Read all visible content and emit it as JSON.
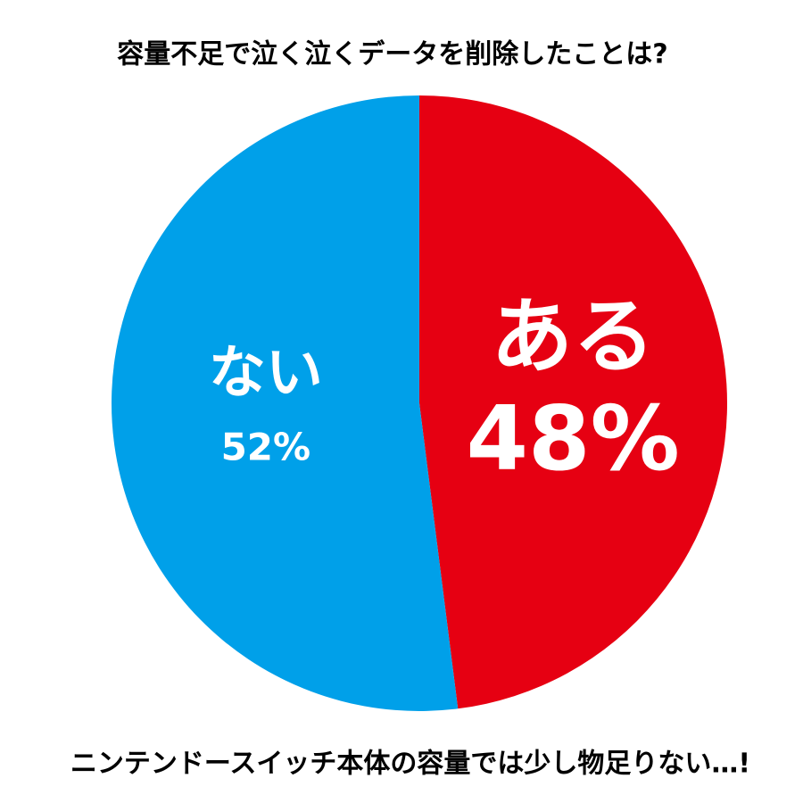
{
  "chart_data": {
    "type": "pie",
    "title": "容量不足で泣く泣くデータを削除したことは?",
    "annotation": "ニンテンドースイッチ本体の容量では少し物足りない…!",
    "categories": [
      "ある",
      "ない"
    ],
    "values": [
      48,
      52
    ],
    "value_labels": [
      "48%",
      "52%"
    ],
    "colors": [
      "#e60012",
      "#00a0e9"
    ]
  }
}
